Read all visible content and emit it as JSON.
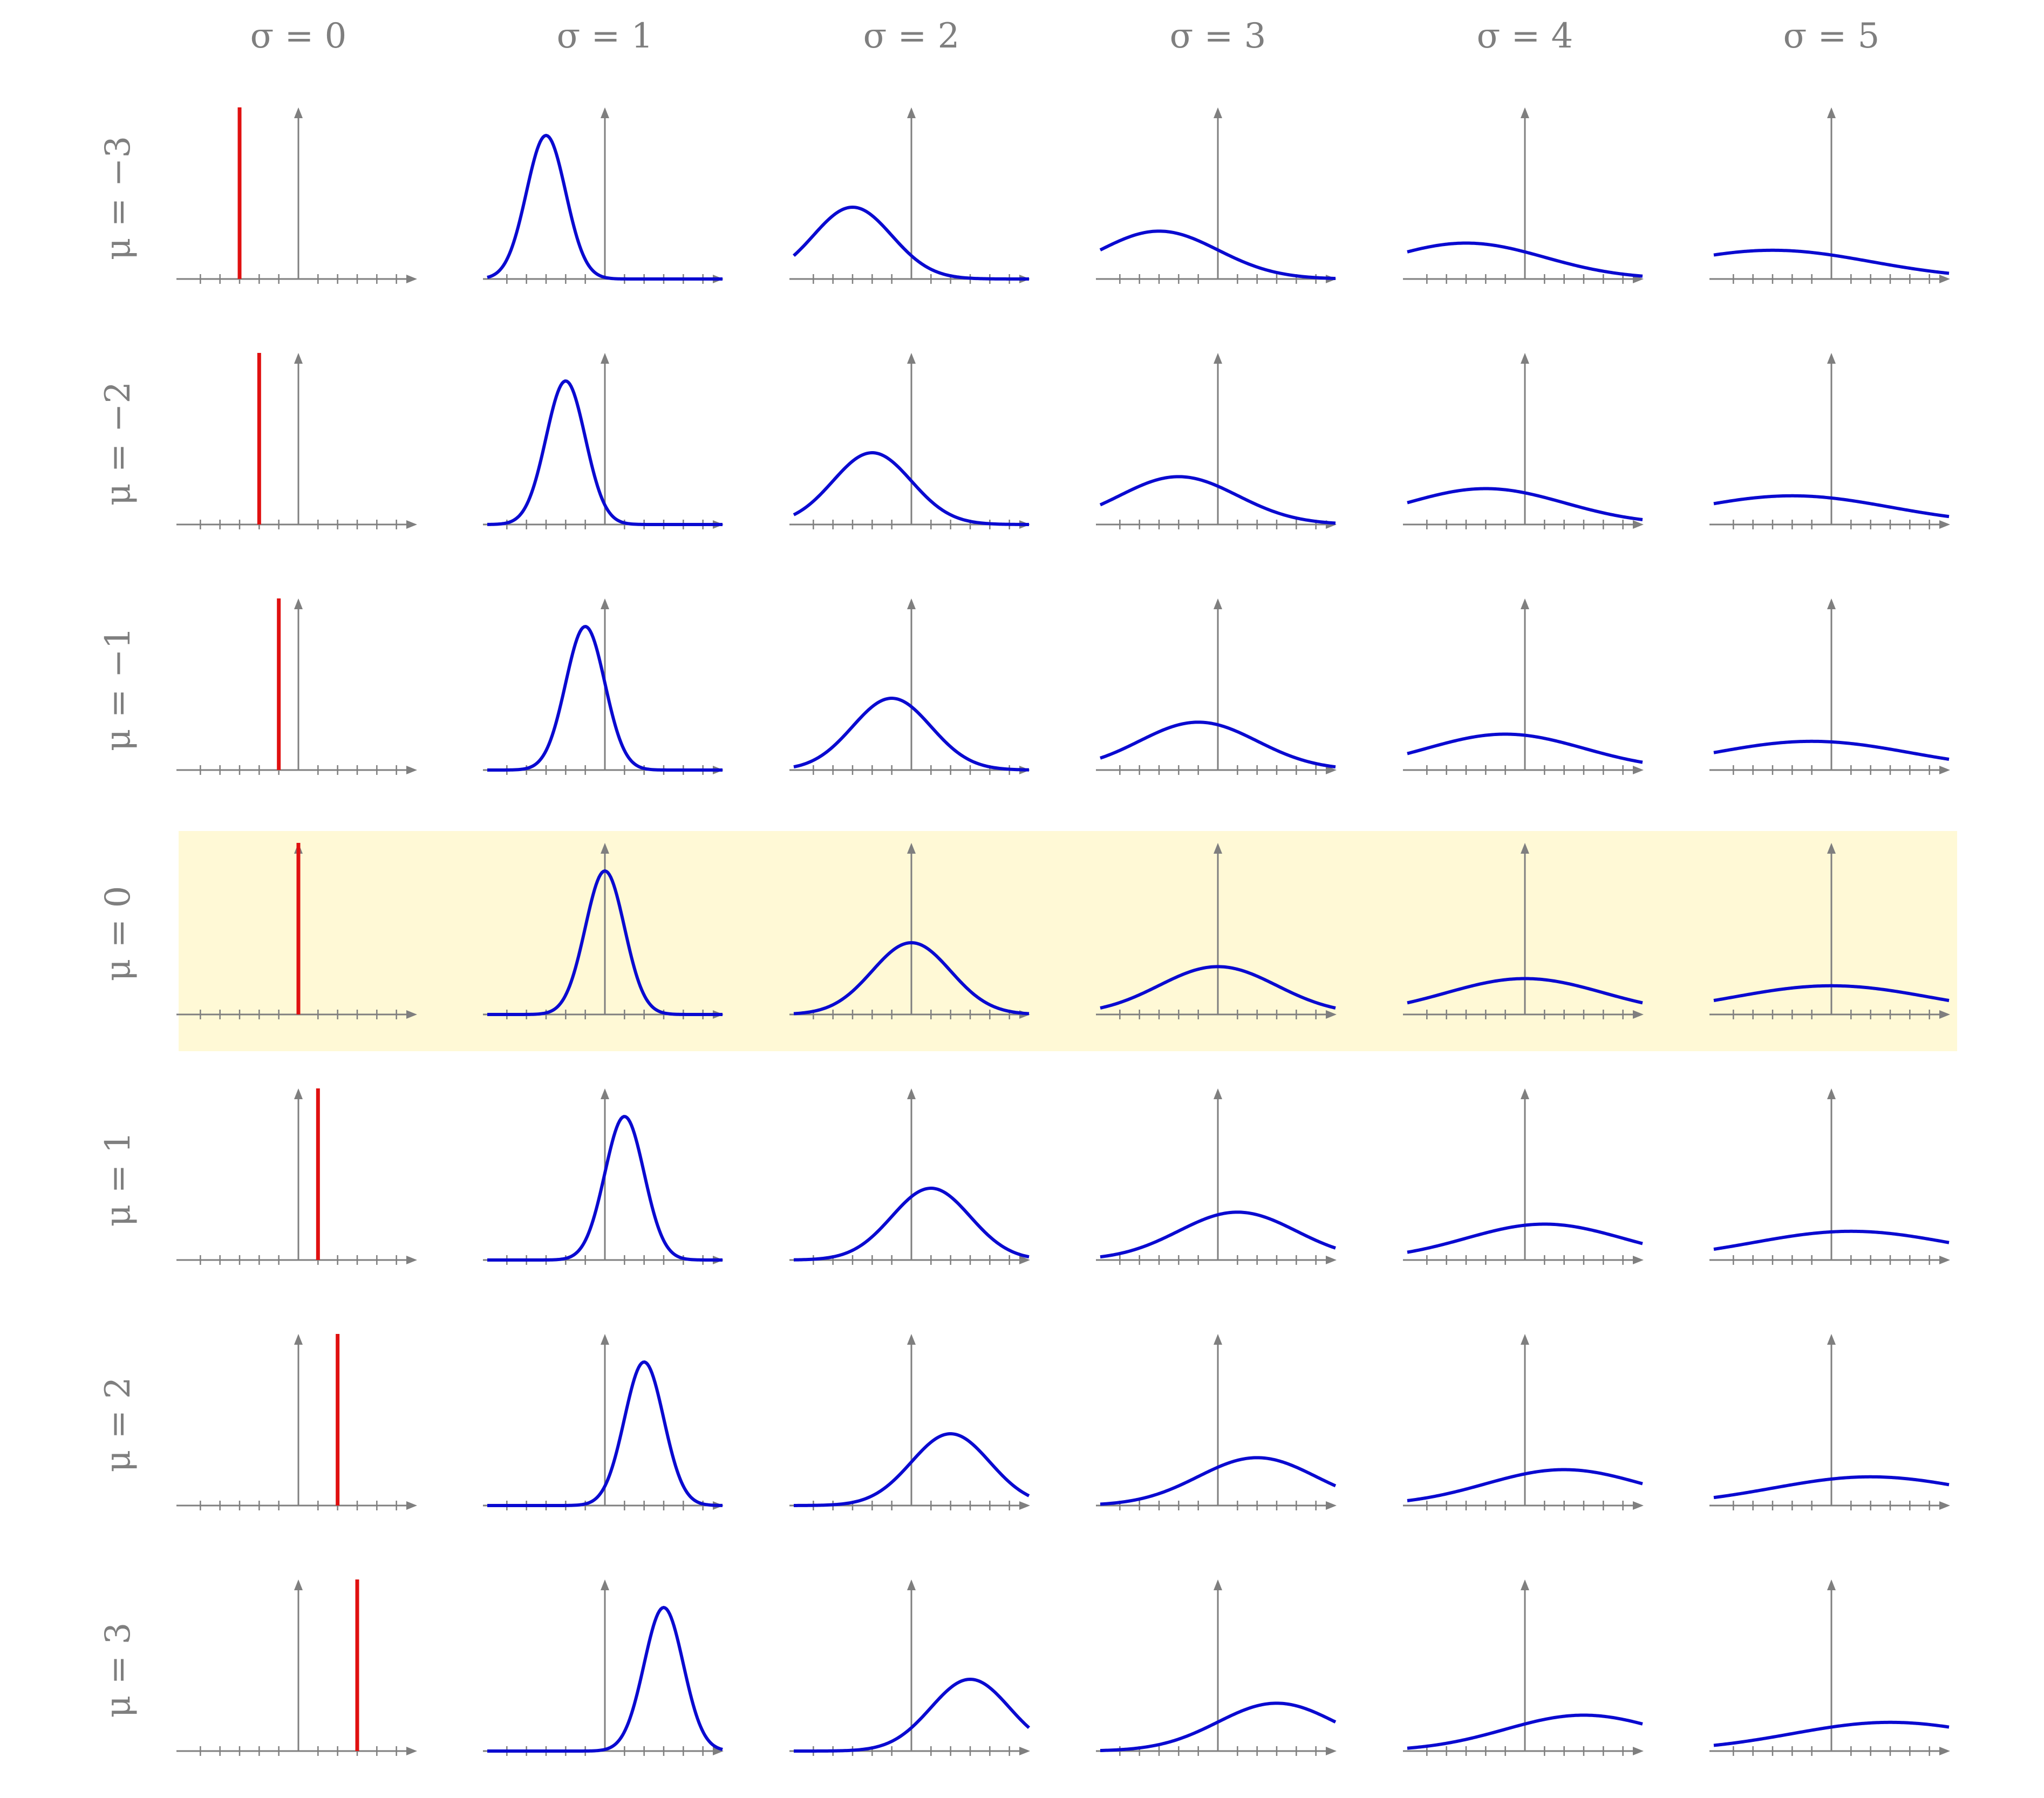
{
  "chart_data": {
    "type": "line",
    "title": "",
    "description_grid": "small multiples: rows by mu, columns by sigma",
    "column_labels": [
      "σ = 0",
      "σ = 1",
      "σ = 2",
      "σ = 3",
      "σ = 4",
      "σ = 5"
    ],
    "row_labels": [
      "μ = −3",
      "μ = −2",
      "μ = −1",
      "μ = 0",
      "μ = 1",
      "μ = 2",
      "μ = 3"
    ],
    "sigmas": [
      0,
      1,
      2,
      3,
      4,
      5
    ],
    "mus": [
      -3,
      -2,
      -1,
      0,
      1,
      2,
      3
    ],
    "highlighted_row_mu": 0,
    "xlim": [
      -6,
      6
    ],
    "ylim": [
      0,
      0.45
    ],
    "x_ticks": [
      -5,
      -4,
      -3,
      -2,
      -1,
      1,
      2,
      3,
      4,
      5
    ],
    "grid": false,
    "series_colors": {
      "gaussian": "#0a0ad0",
      "dirac_spike": "#e01010",
      "axes": "#7f7f7f",
      "highlight": "#fff9d6"
    },
    "function": "normal density N(mu, sigma^2); sigma = 0 drawn as a vertical spike at x = mu"
  }
}
